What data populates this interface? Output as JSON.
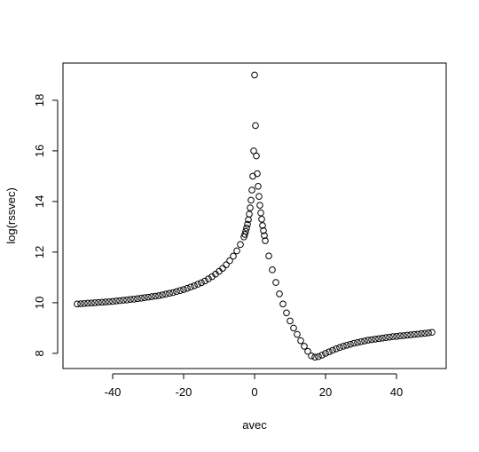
{
  "chart_data": {
    "type": "scatter",
    "xlabel": "avec",
    "ylabel": "log(rssvec)",
    "x": [
      -50,
      -49,
      -48,
      -47,
      -46,
      -45,
      -44,
      -43,
      -42,
      -41,
      -40,
      -39,
      -38,
      -37,
      -36,
      -35,
      -34,
      -33,
      -32,
      -31,
      -30,
      -29,
      -28,
      -27,
      -26,
      -25,
      -24,
      -23,
      -22,
      -21,
      -20,
      -19,
      -18,
      -17,
      -16,
      -15,
      -14,
      -13,
      -12,
      -11,
      -10,
      -9,
      -8,
      -7,
      -6,
      -5,
      -4,
      -3,
      -2.75,
      -2.5,
      -2.25,
      -2,
      -1.75,
      -1.5,
      -1.25,
      -1,
      -0.75,
      -0.5,
      -0.25,
      0,
      0.25,
      0.5,
      0.75,
      1,
      1.25,
      1.5,
      1.75,
      2,
      2.25,
      2.5,
      2.75,
      3,
      4,
      5,
      6,
      7,
      8,
      9,
      10,
      11,
      12,
      13,
      14,
      15,
      16,
      17,
      18,
      19,
      20,
      21,
      22,
      23,
      24,
      25,
      26,
      27,
      28,
      29,
      30,
      31,
      32,
      33,
      34,
      35,
      36,
      37,
      38,
      39,
      40,
      41,
      42,
      43,
      44,
      45,
      46,
      47,
      48,
      49,
      50
    ],
    "values": [
      9.95,
      9.96,
      9.97,
      9.98,
      9.99,
      10.0,
      10.01,
      10.02,
      10.03,
      10.04,
      10.05,
      10.07,
      10.08,
      10.1,
      10.11,
      10.13,
      10.14,
      10.16,
      10.18,
      10.2,
      10.22,
      10.24,
      10.26,
      10.28,
      10.31,
      10.34,
      10.37,
      10.4,
      10.44,
      10.48,
      10.52,
      10.57,
      10.62,
      10.67,
      10.73,
      10.79,
      10.86,
      10.94,
      11.03,
      11.13,
      11.24,
      11.36,
      11.5,
      11.66,
      11.84,
      12.05,
      12.3,
      12.6,
      12.7,
      12.82,
      12.95,
      13.1,
      13.28,
      13.5,
      13.75,
      14.05,
      14.45,
      15.0,
      16.0,
      19.0,
      17.0,
      15.8,
      15.1,
      14.6,
      14.2,
      13.85,
      13.55,
      13.3,
      13.05,
      12.85,
      12.65,
      12.45,
      11.85,
      11.3,
      10.8,
      10.35,
      9.95,
      9.6,
      9.28,
      9.0,
      8.75,
      8.5,
      8.28,
      8.08,
      7.9,
      7.85,
      7.87,
      7.93,
      8.0,
      8.06,
      8.12,
      8.18,
      8.23,
      8.28,
      8.32,
      8.36,
      8.4,
      8.43,
      8.46,
      8.49,
      8.52,
      8.54,
      8.56,
      8.58,
      8.6,
      8.62,
      8.64,
      8.66,
      8.67,
      8.69,
      8.7,
      8.72,
      8.73,
      8.75,
      8.76,
      8.78,
      8.79,
      8.81,
      8.83
    ],
    "color": "#000000",
    "xlim": [
      -54,
      54
    ],
    "ylim": [
      7.4,
      19.47
    ],
    "xticks": [
      -40,
      -20,
      0,
      20,
      40
    ],
    "yticks": [
      8,
      10,
      12,
      14,
      16,
      18
    ]
  }
}
